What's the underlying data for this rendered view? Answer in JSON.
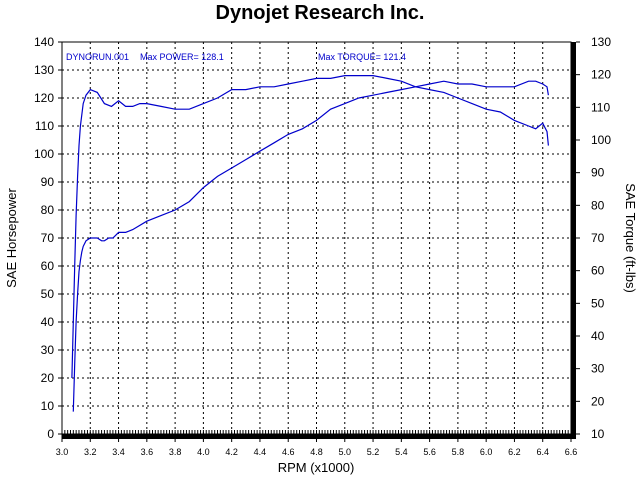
{
  "chart_data": {
    "type": "line",
    "title": "Dynojet Research Inc.",
    "xlabel": "RPM (x1000)",
    "ylabel_left": "SAE Horsepower",
    "ylabel_right": "SAE Torque (ft-lbs)",
    "xlim": [
      3.0,
      6.6
    ],
    "ylim_left": [
      0,
      140
    ],
    "ylim_right": [
      10,
      130
    ],
    "x_ticks": [
      "3.0",
      "3.2",
      "3.4",
      "3.6",
      "3.8",
      "4.0",
      "4.2",
      "4.4",
      "4.6",
      "4.8",
      "5.0",
      "5.2",
      "5.4",
      "5.6",
      "5.8",
      "6.0",
      "6.2",
      "6.4",
      "6.6"
    ],
    "y_ticks_left": [
      "0",
      "10",
      "20",
      "30",
      "40",
      "50",
      "60",
      "70",
      "80",
      "90",
      "100",
      "110",
      "120",
      "130",
      "140"
    ],
    "y_ticks_right": [
      "10",
      "20",
      "30",
      "40",
      "50",
      "60",
      "70",
      "80",
      "90",
      "100",
      "110",
      "120",
      "130"
    ],
    "grid": true,
    "annotations": {
      "run": "DYNORUN.001",
      "max_power": "Max POWER= 128.1",
      "max_torque": "Max TORQUE= 121.4"
    },
    "series": [
      {
        "color": "#0000cc",
        "axis": "left",
        "x": [
          3.08,
          3.09,
          3.1,
          3.11,
          3.12,
          3.13,
          3.14,
          3.15,
          3.17,
          3.2,
          3.22,
          3.25,
          3.28,
          3.3,
          3.33,
          3.36,
          3.4,
          3.45,
          3.5,
          3.6,
          3.7,
          3.8,
          3.9,
          4.0,
          4.1,
          4.2,
          4.3,
          4.4,
          4.5,
          4.6,
          4.7,
          4.8,
          4.9,
          5.0,
          5.1,
          5.2,
          5.3,
          5.4,
          5.5,
          5.6,
          5.7,
          5.8,
          5.9,
          6.0,
          6.1,
          6.2,
          6.3,
          6.35,
          6.4,
          6.43,
          6.44
        ],
        "y": [
          8,
          25,
          40,
          50,
          58,
          62,
          65,
          67,
          69,
          70,
          70,
          70,
          69,
          69,
          70,
          70,
          72,
          72,
          73,
          76,
          78,
          80,
          83,
          88,
          92,
          95,
          98,
          101,
          104,
          107,
          109,
          112,
          116,
          118,
          120,
          121,
          122,
          123,
          124,
          125,
          126,
          125,
          125,
          124,
          124,
          124,
          126,
          126,
          125,
          124,
          121
        ]
      },
      {
        "color": "#0000cc",
        "axis": "left",
        "x": [
          3.07,
          3.08,
          3.09,
          3.1,
          3.11,
          3.12,
          3.13,
          3.15,
          3.17,
          3.2,
          3.25,
          3.3,
          3.35,
          3.4,
          3.45,
          3.5,
          3.55,
          3.6,
          3.7,
          3.8,
          3.9,
          4.0,
          4.1,
          4.2,
          4.3,
          4.4,
          4.5,
          4.6,
          4.7,
          4.8,
          4.9,
          5.0,
          5.1,
          5.2,
          5.3,
          5.4,
          5.5,
          5.6,
          5.7,
          5.8,
          5.9,
          6.0,
          6.1,
          6.2,
          6.3,
          6.35,
          6.4,
          6.43,
          6.44
        ],
        "y": [
          20,
          40,
          60,
          78,
          92,
          103,
          110,
          118,
          121,
          123,
          122,
          118,
          117,
          119,
          117,
          117,
          118,
          118,
          117,
          116,
          116,
          118,
          120,
          123,
          123,
          124,
          124,
          125,
          126,
          127,
          127,
          128,
          128,
          128,
          127,
          126,
          124,
          123,
          122,
          120,
          118,
          116,
          115,
          112,
          110,
          109,
          111,
          108,
          103
        ]
      }
    ]
  }
}
